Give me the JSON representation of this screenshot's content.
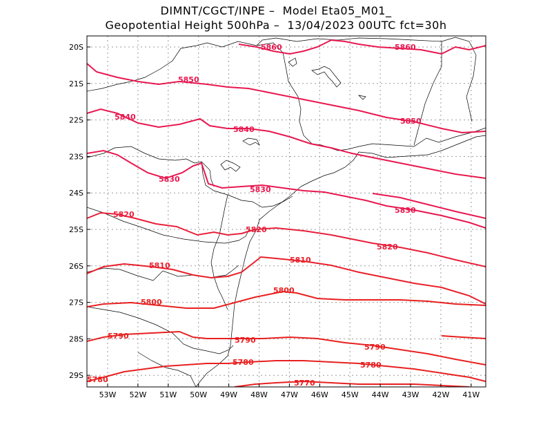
{
  "header": {
    "line1": "DIMNT/CGCT/INPE –  Model Eta05_M01_",
    "line2": "Geopotential Height 500hPa –  13/04/2023 00UTC fct=30h"
  },
  "axes": {
    "lon_labels": [
      "53W",
      "52W",
      "51W",
      "50W",
      "49W",
      "48W",
      "47W",
      "46W",
      "45W",
      "44W",
      "43W",
      "42W",
      "41W"
    ],
    "lat_labels": [
      "20S",
      "21S",
      "22S",
      "23S",
      "24S",
      "25S",
      "26S",
      "27S",
      "28S",
      "29S"
    ],
    "grid": "dotted"
  },
  "colors": {
    "high": "#e8174f",
    "low": "#e81717",
    "border": "#000000",
    "grid": "#9a9a9a"
  },
  "contour_labels": [
    {
      "text": "5860"
    },
    {
      "text": "5860"
    },
    {
      "text": "5850"
    },
    {
      "text": "5850"
    },
    {
      "text": "5840"
    },
    {
      "text": "5840"
    },
    {
      "text": "5830"
    },
    {
      "text": "5830"
    },
    {
      "text": "5830"
    },
    {
      "text": "5820"
    },
    {
      "text": "5820"
    },
    {
      "text": "5820"
    },
    {
      "text": "5810"
    },
    {
      "text": "5810"
    },
    {
      "text": "5800"
    },
    {
      "text": "5800"
    },
    {
      "text": "5790"
    },
    {
      "text": "5790"
    },
    {
      "text": "5790"
    },
    {
      "text": "5780"
    },
    {
      "text": "5780"
    },
    {
      "text": "5780"
    },
    {
      "text": "5770"
    }
  ]
}
